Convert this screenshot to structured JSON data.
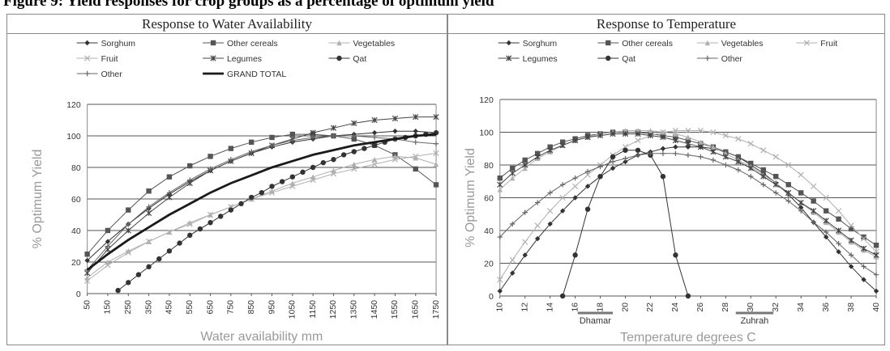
{
  "caption": "Figure 9: Yield responses for crop groups as a percentage of optimum yield",
  "colors": {
    "gridline": "#555555",
    "series": "#333333",
    "light_series": "#b0b0b0",
    "axis_title": "#9a9a9a",
    "border": "#8a8a8a"
  },
  "chart_data": [
    {
      "type": "line",
      "title": "Response to Water Availability",
      "xlabel": "Water availability mm",
      "ylabel": "% Optimum Yield",
      "xlim": [
        50,
        1750
      ],
      "ylim": [
        0,
        120
      ],
      "xticks": [
        50,
        150,
        250,
        350,
        450,
        550,
        650,
        750,
        850,
        950,
        1050,
        1150,
        1250,
        1350,
        1450,
        1550,
        1650,
        1750
      ],
      "yticks": [
        0,
        20,
        40,
        60,
        80,
        100,
        120
      ],
      "grid": "horizontal",
      "legend_position": "top",
      "legend_columns": 3,
      "series": [
        {
          "name": "Sorghum",
          "marker": "diamond",
          "color": "#333333",
          "x": [
            50,
            150,
            250,
            350,
            450,
            550,
            650,
            750,
            850,
            950,
            1050,
            1150,
            1250,
            1350,
            1450,
            1550,
            1650,
            1750
          ],
          "y": [
            21,
            33,
            44,
            54,
            63,
            71,
            78,
            84,
            89,
            93,
            96,
            98,
            100,
            101,
            102,
            103,
            103,
            102
          ]
        },
        {
          "name": "Other cereals",
          "marker": "square",
          "color": "#555555",
          "x": [
            50,
            150,
            250,
            350,
            450,
            550,
            650,
            750,
            850,
            950,
            1050,
            1150,
            1250,
            1350,
            1450,
            1550,
            1650,
            1750
          ],
          "y": [
            25,
            40,
            53,
            65,
            74,
            81,
            87,
            92,
            96,
            99,
            101,
            101,
            100,
            98,
            94,
            88,
            79,
            69
          ]
        },
        {
          "name": "Vegetables",
          "marker": "triangle",
          "color": "#b0b0b0",
          "x": [
            50,
            150,
            250,
            350,
            450,
            550,
            650,
            750,
            850,
            950,
            1050,
            1150,
            1250,
            1350,
            1450,
            1550,
            1650,
            1750
          ],
          "y": [
            10,
            20,
            27,
            33,
            39,
            45,
            50,
            55,
            60,
            65,
            70,
            74,
            78,
            82,
            85,
            87,
            86,
            82
          ]
        },
        {
          "name": "Fruit",
          "marker": "x",
          "color": "#b0b0b0",
          "x": [
            50,
            150,
            250,
            350,
            450,
            550,
            650,
            750,
            850,
            950,
            1050,
            1150,
            1250,
            1350,
            1450,
            1550,
            1650,
            1750
          ],
          "y": [
            8,
            18,
            26,
            33,
            39,
            44,
            50,
            55,
            60,
            64,
            68,
            72,
            76,
            79,
            82,
            85,
            87,
            89
          ]
        },
        {
          "name": "Legumes",
          "marker": "asterisk",
          "color": "#444444",
          "x": [
            50,
            150,
            250,
            350,
            450,
            550,
            650,
            750,
            850,
            950,
            1050,
            1150,
            1250,
            1350,
            1450,
            1550,
            1650,
            1750
          ],
          "y": [
            13,
            28,
            40,
            51,
            61,
            70,
            78,
            84,
            89,
            94,
            98,
            102,
            105,
            108,
            110,
            111,
            112,
            112
          ]
        },
        {
          "name": "Qat",
          "marker": "circle",
          "color": "#333333",
          "x": [
            200,
            250,
            300,
            350,
            400,
            450,
            500,
            550,
            600,
            650,
            700,
            750,
            800,
            850,
            900,
            950,
            1000,
            1050,
            1100,
            1150,
            1200,
            1250,
            1300,
            1350,
            1400,
            1450,
            1500,
            1550,
            1600,
            1650,
            1700,
            1750
          ],
          "y": [
            2,
            7,
            12,
            17,
            22,
            27,
            32,
            37,
            41,
            45,
            49,
            53,
            57,
            61,
            64,
            68,
            71,
            74,
            77,
            80,
            83,
            85,
            88,
            90,
            92,
            94,
            96,
            98,
            99,
            100,
            101,
            102
          ]
        },
        {
          "name": "Other",
          "marker": "plus",
          "color": "#666666",
          "x": [
            50,
            150,
            250,
            350,
            450,
            550,
            650,
            750,
            850,
            950,
            1050,
            1150,
            1250,
            1350,
            1450,
            1550,
            1650,
            1750
          ],
          "y": [
            15,
            30,
            44,
            55,
            64,
            72,
            79,
            85,
            90,
            94,
            97,
            99,
            100,
            100,
            99,
            98,
            96,
            95
          ]
        },
        {
          "name": "GRAND TOTAL",
          "marker": "none",
          "color": "#1a1a1a",
          "thick": true,
          "x": [
            50,
            150,
            250,
            350,
            450,
            550,
            650,
            750,
            850,
            950,
            1050,
            1150,
            1250,
            1350,
            1450,
            1550,
            1650,
            1750
          ],
          "y": [
            15,
            25,
            34,
            42,
            50,
            57,
            64,
            70,
            75,
            80,
            84,
            88,
            91,
            94,
            96,
            98,
            100,
            101
          ]
        }
      ]
    },
    {
      "type": "line",
      "title": "Response to Temperature",
      "xlabel": "Temperature degrees C",
      "ylabel": "% Optimum Yield",
      "xlim": [
        10,
        40
      ],
      "ylim": [
        0,
        120
      ],
      "xticks": [
        10,
        12,
        14,
        16,
        18,
        20,
        22,
        24,
        26,
        28,
        30,
        32,
        34,
        36,
        38,
        40
      ],
      "yticks": [
        0,
        20,
        40,
        60,
        80,
        100,
        120
      ],
      "grid": "horizontal",
      "legend_position": "top",
      "legend_columns": 4,
      "annotations": [
        {
          "label": "Dhamar",
          "x_range": [
            16.2,
            19.0
          ]
        },
        {
          "label": "Zuhrah",
          "x_range": [
            28.8,
            31.8
          ]
        }
      ],
      "series": [
        {
          "name": "Sorghum",
          "marker": "diamond",
          "color": "#333333",
          "x": [
            10,
            11,
            12,
            13,
            14,
            15,
            16,
            17,
            18,
            19,
            20,
            21,
            22,
            23,
            24,
            25,
            26,
            27,
            28,
            29,
            30,
            31,
            32,
            33,
            34,
            35,
            36,
            37,
            38,
            39,
            40
          ],
          "y": [
            3,
            14,
            25,
            35,
            44,
            52,
            60,
            67,
            73,
            78,
            82,
            86,
            88,
            90,
            91,
            91,
            91,
            90,
            88,
            85,
            80,
            75,
            69,
            62,
            54,
            45,
            36,
            27,
            18,
            10,
            3
          ]
        },
        {
          "name": "Other cereals",
          "marker": "square",
          "color": "#555555",
          "x": [
            10,
            11,
            12,
            13,
            14,
            15,
            16,
            17,
            18,
            19,
            20,
            21,
            22,
            23,
            24,
            25,
            26,
            27,
            28,
            29,
            30,
            31,
            32,
            33,
            34,
            35,
            36,
            37,
            38,
            39,
            40
          ],
          "y": [
            72,
            78,
            83,
            87,
            91,
            94,
            96,
            98,
            99,
            100,
            100,
            100,
            99,
            98,
            97,
            95,
            93,
            91,
            88,
            85,
            81,
            77,
            73,
            68,
            63,
            58,
            52,
            47,
            41,
            36,
            31
          ]
        },
        {
          "name": "Vegetables",
          "marker": "triangle",
          "color": "#b0b0b0",
          "x": [
            10,
            11,
            12,
            13,
            14,
            15,
            16,
            17,
            18,
            19,
            20,
            21,
            22,
            23,
            24,
            25,
            26,
            27,
            28,
            29,
            30,
            31,
            32,
            33,
            34,
            35,
            36,
            37,
            38,
            39,
            40
          ],
          "y": [
            65,
            72,
            78,
            84,
            88,
            92,
            95,
            97,
            99,
            100,
            101,
            101,
            101,
            100,
            99,
            97,
            94,
            91,
            87,
            83,
            79,
            74,
            69,
            63,
            57,
            51,
            45,
            39,
            33,
            28,
            24
          ]
        },
        {
          "name": "Fruit",
          "marker": "x",
          "color": "#b0b0b0",
          "x": [
            10,
            11,
            12,
            13,
            14,
            15,
            16,
            17,
            18,
            19,
            20,
            21,
            22,
            23,
            24,
            25,
            26,
            27,
            28,
            29,
            30,
            31,
            32,
            33,
            34,
            35,
            36,
            37,
            38,
            39,
            40
          ],
          "y": [
            10,
            22,
            33,
            43,
            52,
            60,
            67,
            74,
            80,
            86,
            91,
            95,
            98,
            100,
            101,
            101,
            101,
            100,
            98,
            96,
            93,
            89,
            85,
            80,
            74,
            67,
            60,
            52,
            43,
            35,
            27
          ]
        },
        {
          "name": "Legumes",
          "marker": "asterisk",
          "color": "#444444",
          "x": [
            10,
            11,
            12,
            13,
            14,
            15,
            16,
            17,
            18,
            19,
            20,
            21,
            22,
            23,
            24,
            25,
            26,
            27,
            28,
            29,
            30,
            31,
            32,
            33,
            34,
            35,
            36,
            37,
            38,
            39,
            40
          ],
          "y": [
            68,
            75,
            80,
            85,
            89,
            92,
            95,
            97,
            98,
            99,
            99,
            99,
            98,
            97,
            95,
            93,
            91,
            88,
            85,
            82,
            78,
            73,
            68,
            63,
            57,
            52,
            46,
            40,
            34,
            29,
            25
          ]
        },
        {
          "name": "Qat",
          "marker": "circle",
          "color": "#333333",
          "x": [
            15,
            16,
            17,
            18,
            19,
            20,
            21,
            22,
            23,
            24,
            25
          ],
          "y": [
            0,
            25,
            53,
            73,
            85,
            89,
            89,
            86,
            73,
            25,
            0
          ]
        },
        {
          "name": "Other",
          "marker": "plus",
          "color": "#666666",
          "x": [
            10,
            11,
            12,
            13,
            14,
            15,
            16,
            17,
            18,
            19,
            20,
            21,
            22,
            23,
            24,
            25,
            26,
            27,
            28,
            29,
            30,
            31,
            32,
            33,
            34,
            35,
            36,
            37,
            38,
            39,
            40
          ],
          "y": [
            36,
            44,
            51,
            57,
            63,
            68,
            72,
            76,
            79,
            82,
            84,
            86,
            87,
            87,
            87,
            86,
            85,
            83,
            80,
            77,
            73,
            68,
            63,
            58,
            52,
            45,
            39,
            32,
            25,
            18,
            13
          ]
        }
      ]
    }
  ]
}
